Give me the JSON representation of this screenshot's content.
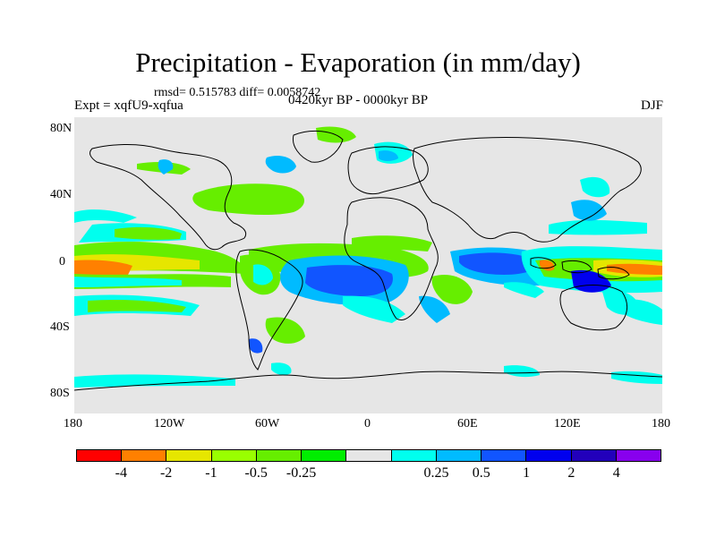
{
  "map": {
    "title": "Precipitation - Evaporation (in mm/day)",
    "stats": "rmsd= 0.515783 diff= 0.0058742",
    "experiment": "Expt = xqfU9-xqfua",
    "period": "0420kyr BP - 0000kyr BP",
    "season": "DJF",
    "lat_labels": [
      "80N",
      "40N",
      "0",
      "40S",
      "80S"
    ],
    "lat_values": [
      80,
      40,
      0,
      -40,
      -80
    ],
    "lon_labels": [
      "180",
      "120W",
      "60W",
      "0",
      "60E",
      "120E",
      "180"
    ],
    "lon_values": [
      -180,
      -120,
      -60,
      0,
      60,
      120,
      180
    ],
    "lat_range": [
      -90,
      90
    ],
    "lon_range": [
      -180,
      180
    ]
  },
  "colorbar": {
    "labels": [
      "-4",
      "-2",
      "-1",
      "-0.5",
      "-0.25",
      "0.25",
      "0.5",
      "1",
      "2",
      "4"
    ],
    "colors": [
      "#ff0000",
      "#ff8000",
      "#e6e600",
      "#99ff00",
      "#66ee00",
      "#00ee00",
      "#e6e6e6",
      "#00ffee",
      "#00bbff",
      "#1155ff",
      "#0000ee",
      "#2200bb",
      "#8800ee"
    ]
  },
  "colors": {
    "background": "#e6e6e6",
    "coastline": "#000000"
  }
}
